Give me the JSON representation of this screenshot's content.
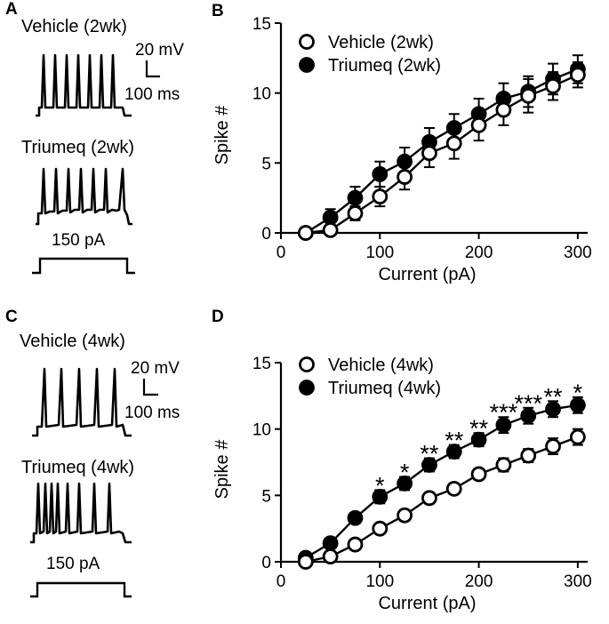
{
  "panels": {
    "a": {
      "letter": "A",
      "trace1": "Vehicle (2wk)",
      "trace2": "Triumeq (2wk)",
      "scale_v": "20 mV",
      "scale_t": "100 ms",
      "stim": "150 pA"
    },
    "c": {
      "letter": "C",
      "trace1": "Vehicle (4wk)",
      "trace2": "Triumeq (4wk)",
      "scale_v": "20 mV",
      "scale_t": "100 ms",
      "stim": "150 pA"
    }
  },
  "colors": {
    "vehicle_fill": "#ffffff",
    "triumeq_fill": "#000000",
    "ink": "#000000"
  },
  "chart_data": [
    {
      "panel": "B",
      "type": "line",
      "xlabel": "Current (pA)",
      "ylabel": "Spike #",
      "xlim": [
        0,
        310
      ],
      "ylim": [
        0,
        15
      ],
      "xticks": [
        0,
        100,
        200,
        300
      ],
      "yticks": [
        0,
        5,
        10,
        15
      ],
      "x": [
        25,
        50,
        75,
        100,
        125,
        150,
        175,
        200,
        225,
        250,
        275,
        300
      ],
      "series": [
        {
          "name": "Vehicle (2wk)",
          "marker": "open",
          "values": [
            0.0,
            0.2,
            1.4,
            2.6,
            4.0,
            5.7,
            6.4,
            7.7,
            8.8,
            9.8,
            10.5,
            11.3
          ],
          "errors": [
            0.1,
            0.2,
            0.5,
            0.7,
            0.9,
            1.0,
            1.1,
            1.1,
            1.1,
            1.2,
            1.0,
            0.9
          ]
        },
        {
          "name": "Triumeq (2wk)",
          "marker": "filled",
          "values": [
            0.0,
            1.1,
            2.5,
            4.2,
            5.1,
            6.5,
            7.5,
            8.5,
            9.6,
            10.1,
            11.0,
            11.7
          ],
          "errors": [
            0.2,
            0.6,
            0.8,
            0.9,
            1.0,
            1.0,
            1.0,
            1.1,
            1.1,
            1.1,
            1.1,
            1.0
          ]
        }
      ],
      "annotations": []
    },
    {
      "panel": "D",
      "type": "line",
      "xlabel": "Current (pA)",
      "ylabel": "Spike #",
      "xlim": [
        0,
        310
      ],
      "ylim": [
        0,
        15
      ],
      "xticks": [
        0,
        100,
        200,
        300
      ],
      "yticks": [
        0,
        5,
        10,
        15
      ],
      "x": [
        25,
        50,
        75,
        100,
        125,
        150,
        175,
        200,
        225,
        250,
        275,
        300
      ],
      "series": [
        {
          "name": "Vehicle (4wk)",
          "marker": "open",
          "values": [
            0.0,
            0.4,
            1.3,
            2.5,
            3.5,
            4.8,
            5.5,
            6.6,
            7.3,
            8.0,
            8.7,
            9.4
          ],
          "errors": [
            0.1,
            0.2,
            0.3,
            0.3,
            0.4,
            0.4,
            0.4,
            0.4,
            0.5,
            0.5,
            0.6,
            0.6
          ]
        },
        {
          "name": "Triumeq (4wk)",
          "marker": "filled",
          "values": [
            0.3,
            1.4,
            3.3,
            4.9,
            5.9,
            7.3,
            8.3,
            9.2,
            10.3,
            11.0,
            11.5,
            11.8
          ],
          "errors": [
            0.2,
            0.3,
            0.4,
            0.5,
            0.5,
            0.5,
            0.5,
            0.5,
            0.6,
            0.6,
            0.6,
            0.6
          ]
        }
      ],
      "annotations": [
        {
          "x": 100,
          "text": "*"
        },
        {
          "x": 125,
          "text": "*"
        },
        {
          "x": 150,
          "text": "**"
        },
        {
          "x": 175,
          "text": "**"
        },
        {
          "x": 200,
          "text": "**"
        },
        {
          "x": 225,
          "text": "***"
        },
        {
          "x": 250,
          "text": "***"
        },
        {
          "x": 275,
          "text": "**"
        },
        {
          "x": 300,
          "text": "*"
        }
      ]
    }
  ]
}
